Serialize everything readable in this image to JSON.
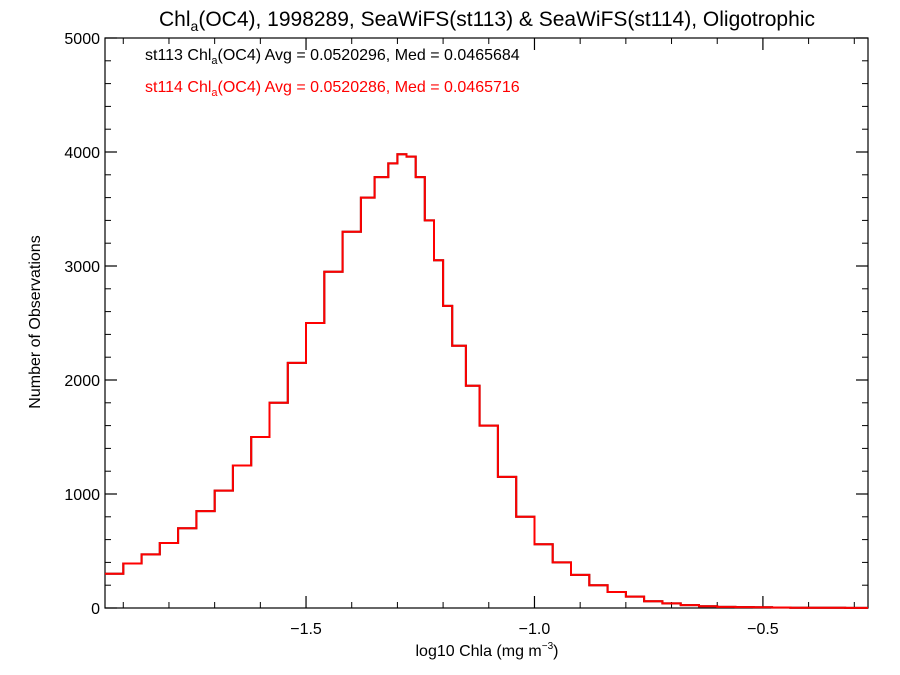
{
  "chart_data": {
    "type": "line",
    "step": true,
    "title": {
      "prefix": "Chl",
      "sub": "a",
      "suffix": "(OC4), 1998289, SeaWiFS(st113) & SeaWiFS(st114), Oligotrophic"
    },
    "xlabel": {
      "prefix": "log10 Chla (mg m",
      "sup": "−3",
      "suffix": ")"
    },
    "ylabel": "Number of Observations",
    "xlim": [
      -1.94,
      -0.27
    ],
    "ylim": [
      0,
      5000
    ],
    "x_ticks": [
      -1.5,
      -1.0,
      -0.5
    ],
    "x_tick_labels": [
      "−1.5",
      "−1.0",
      "−0.5"
    ],
    "y_ticks": [
      0,
      1000,
      2000,
      3000,
      4000,
      5000
    ],
    "y_tick_labels": [
      "0",
      "1000",
      "2000",
      "3000",
      "4000",
      "5000"
    ],
    "grid": false,
    "legend": "top-left",
    "x": [
      -1.94,
      -1.9,
      -1.86,
      -1.82,
      -1.78,
      -1.74,
      -1.7,
      -1.66,
      -1.62,
      -1.58,
      -1.54,
      -1.5,
      -1.46,
      -1.42,
      -1.38,
      -1.35,
      -1.32,
      -1.3,
      -1.28,
      -1.26,
      -1.24,
      -1.22,
      -1.2,
      -1.18,
      -1.15,
      -1.12,
      -1.08,
      -1.04,
      -1.0,
      -0.96,
      -0.92,
      -0.88,
      -0.84,
      -0.8,
      -0.76,
      -0.72,
      -0.68,
      -0.64,
      -0.6,
      -0.56,
      -0.52,
      -0.48,
      -0.44,
      -0.4,
      -0.36,
      -0.32,
      -0.27
    ],
    "series": [
      {
        "name": "st113",
        "label_prefix": "st113 Chl",
        "label_sub": "a",
        "label_suffix": "(OC4) Avg = 0.0520296, Med = 0.0465684",
        "color": "#000000",
        "values": [
          300,
          390,
          470,
          570,
          700,
          850,
          1030,
          1250,
          1500,
          1800,
          2150,
          2500,
          2950,
          3300,
          3600,
          3780,
          3900,
          3980,
          3960,
          3780,
          3400,
          3050,
          2650,
          2300,
          1950,
          1600,
          1150,
          800,
          560,
          400,
          290,
          200,
          140,
          100,
          60,
          40,
          25,
          15,
          10,
          8,
          6,
          4,
          3,
          2,
          2,
          1,
          1
        ]
      },
      {
        "name": "st114",
        "label_prefix": "st114 Chl",
        "label_sub": "a",
        "label_suffix": "(OC4) Avg = 0.0520286, Med = 0.0465716",
        "color": "#ff0000",
        "values": [
          300,
          390,
          470,
          570,
          700,
          850,
          1030,
          1250,
          1500,
          1800,
          2150,
          2500,
          2950,
          3300,
          3600,
          3780,
          3900,
          3980,
          3960,
          3780,
          3400,
          3050,
          2650,
          2300,
          1950,
          1600,
          1150,
          800,
          560,
          400,
          290,
          200,
          140,
          100,
          60,
          40,
          25,
          15,
          10,
          8,
          6,
          4,
          3,
          2,
          2,
          1,
          1
        ]
      }
    ]
  }
}
